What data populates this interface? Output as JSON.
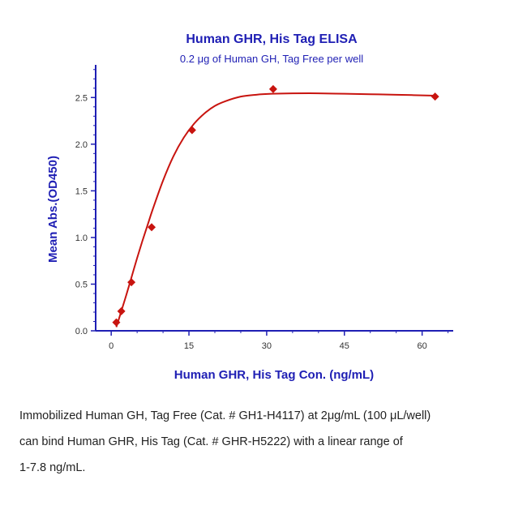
{
  "chart_data": {
    "type": "scatter",
    "title": "Human GHR, His Tag ELISA",
    "subtitle": "0.2 μg of Human GH, Tag Free per well",
    "xlabel": "Human GHR, His Tag Con. (ng/mL)",
    "ylabel": "Mean Abs.(OD450)",
    "xlim": [
      -3,
      66
    ],
    "ylim": [
      0,
      2.85
    ],
    "x_ticks": [
      0,
      15,
      30,
      45,
      60
    ],
    "y_ticks": [
      0.0,
      0.5,
      1.0,
      1.5,
      2.0,
      2.5
    ],
    "x_tick_labels": [
      "0",
      "15",
      "30",
      "45",
      "60"
    ],
    "y_tick_labels": [
      "0.0",
      "0.5",
      "1.0",
      "1.5",
      "2.0",
      "2.5"
    ],
    "grid": false,
    "series": [
      {
        "x": [
          0.98,
          1.95,
          3.9,
          7.8,
          15.6,
          31.25,
          62.5
        ],
        "y": [
          0.09,
          0.21,
          0.52,
          1.11,
          2.15,
          2.59,
          2.51
        ]
      }
    ],
    "fit_curve": {
      "x": [
        0.98,
        1.5,
        2,
        3,
        4,
        5,
        6,
        7,
        8,
        10,
        12,
        14,
        16,
        18,
        20,
        22,
        25,
        28,
        31,
        35,
        40,
        45,
        50,
        55,
        62.5
      ],
      "y": [
        0.04,
        0.13,
        0.22,
        0.4,
        0.59,
        0.78,
        0.96,
        1.13,
        1.3,
        1.61,
        1.87,
        2.07,
        2.22,
        2.33,
        2.41,
        2.46,
        2.51,
        2.53,
        2.54,
        2.545,
        2.545,
        2.54,
        2.535,
        2.53,
        2.52
      ]
    },
    "colors": {
      "text": "#1f1fb4",
      "axis": "#1f1fb4",
      "series": "#c8140f"
    }
  },
  "caption": {
    "lines": [
      "Immobilized Human GH, Tag Free (Cat. # GH1-H4117) at 2μg/mL (100 μL/well)",
      "can bind Human GHR, His Tag (Cat. # GHR-H5222) with a linear range of",
      "1-7.8 ng/mL."
    ]
  }
}
